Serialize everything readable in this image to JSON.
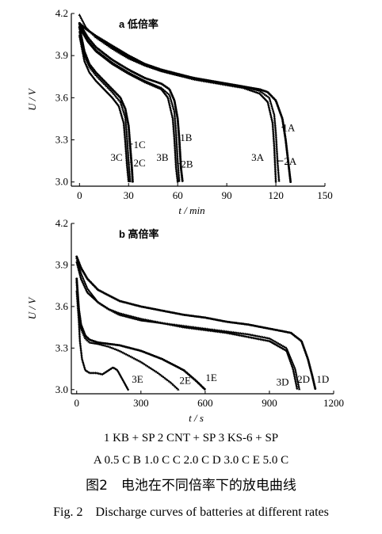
{
  "chart_data": [
    {
      "panel": "a",
      "title": "a 低倍率",
      "type": "line",
      "xlabel": "t / min",
      "ylabel": "U / V",
      "xlim": [
        -5,
        150
      ],
      "ylim": [
        2.97,
        4.2
      ],
      "xticks": [
        0,
        30,
        60,
        90,
        120,
        150
      ],
      "yticks": [
        3.0,
        3.3,
        3.6,
        3.9,
        4.2
      ],
      "series": [
        {
          "name": "1A",
          "points": [
            [
              0,
              4.13
            ],
            [
              5,
              4.08
            ],
            [
              10,
              4.04
            ],
            [
              20,
              3.97
            ],
            [
              30,
              3.9
            ],
            [
              40,
              3.84
            ],
            [
              50,
              3.8
            ],
            [
              60,
              3.77
            ],
            [
              70,
              3.74
            ],
            [
              80,
              3.72
            ],
            [
              90,
              3.7
            ],
            [
              100,
              3.68
            ],
            [
              110,
              3.66
            ],
            [
              115,
              3.64
            ],
            [
              120,
              3.58
            ],
            [
              124,
              3.45
            ],
            [
              126,
              3.3
            ],
            [
              128,
              3.1
            ],
            [
              129,
              3.0
            ]
          ]
        },
        {
          "name": "2A",
          "points": [
            [
              0,
              4.19
            ],
            [
              4,
              4.1
            ],
            [
              10,
              4.03
            ],
            [
              20,
              3.95
            ],
            [
              30,
              3.88
            ],
            [
              40,
              3.83
            ],
            [
              50,
              3.79
            ],
            [
              60,
              3.76
            ],
            [
              70,
              3.74
            ],
            [
              80,
              3.72
            ],
            [
              90,
              3.7
            ],
            [
              100,
              3.68
            ],
            [
              110,
              3.65
            ],
            [
              116,
              3.6
            ],
            [
              119,
              3.48
            ],
            [
              120,
              3.35
            ],
            [
              121,
              3.15
            ],
            [
              122,
              3.0
            ]
          ]
        },
        {
          "name": "3A",
          "points": [
            [
              0,
              4.12
            ],
            [
              4,
              4.09
            ],
            [
              10,
              4.04
            ],
            [
              20,
              3.96
            ],
            [
              30,
              3.89
            ],
            [
              40,
              3.83
            ],
            [
              50,
              3.79
            ],
            [
              60,
              3.76
            ],
            [
              70,
              3.73
            ],
            [
              80,
              3.71
            ],
            [
              90,
              3.69
            ],
            [
              100,
              3.67
            ],
            [
              110,
              3.63
            ],
            [
              115,
              3.57
            ],
            [
              118,
              3.42
            ],
            [
              119,
              3.25
            ],
            [
              120,
              3.0
            ]
          ]
        },
        {
          "name": "1B",
          "points": [
            [
              0,
              4.13
            ],
            [
              5,
              4.03
            ],
            [
              10,
              3.96
            ],
            [
              20,
              3.87
            ],
            [
              30,
              3.8
            ],
            [
              40,
              3.74
            ],
            [
              50,
              3.7
            ],
            [
              55,
              3.66
            ],
            [
              58,
              3.58
            ],
            [
              60,
              3.45
            ],
            [
              61,
              3.3
            ],
            [
              62,
              3.1
            ],
            [
              63,
              3.0
            ]
          ]
        },
        {
          "name": "2B",
          "points": [
            [
              0,
              4.11
            ],
            [
              5,
              4.01
            ],
            [
              10,
              3.94
            ],
            [
              20,
              3.85
            ],
            [
              30,
              3.78
            ],
            [
              40,
              3.72
            ],
            [
              50,
              3.67
            ],
            [
              55,
              3.62
            ],
            [
              58,
              3.5
            ],
            [
              59,
              3.35
            ],
            [
              60,
              3.15
            ],
            [
              61,
              3.0
            ]
          ]
        },
        {
          "name": "3B",
          "points": [
            [
              0,
              4.1
            ],
            [
              5,
              4.0
            ],
            [
              10,
              3.93
            ],
            [
              20,
              3.84
            ],
            [
              30,
              3.77
            ],
            [
              40,
              3.71
            ],
            [
              50,
              3.66
            ],
            [
              54,
              3.6
            ],
            [
              57,
              3.45
            ],
            [
              58,
              3.3
            ],
            [
              59,
              3.1
            ],
            [
              60,
              3.0
            ]
          ]
        },
        {
          "name": "1C",
          "points": [
            [
              0,
              4.1
            ],
            [
              3,
              3.93
            ],
            [
              6,
              3.84
            ],
            [
              10,
              3.78
            ],
            [
              15,
              3.72
            ],
            [
              20,
              3.66
            ],
            [
              25,
              3.6
            ],
            [
              28,
              3.52
            ],
            [
              30,
              3.4
            ],
            [
              31,
              3.25
            ],
            [
              32,
              3.1
            ],
            [
              32.5,
              3.0
            ]
          ]
        },
        {
          "name": "2C",
          "points": [
            [
              0,
              4.07
            ],
            [
              3,
              3.9
            ],
            [
              6,
              3.82
            ],
            [
              10,
              3.76
            ],
            [
              15,
              3.7
            ],
            [
              20,
              3.64
            ],
            [
              25,
              3.57
            ],
            [
              28,
              3.46
            ],
            [
              29,
              3.32
            ],
            [
              30,
              3.15
            ],
            [
              31,
              3.0
            ]
          ]
        },
        {
          "name": "3C",
          "points": [
            [
              0,
              4.04
            ],
            [
              3,
              3.86
            ],
            [
              6,
              3.78
            ],
            [
              10,
              3.72
            ],
            [
              15,
              3.66
            ],
            [
              20,
              3.6
            ],
            [
              24,
              3.54
            ],
            [
              27,
              3.42
            ],
            [
              28,
              3.28
            ],
            [
              29,
              3.12
            ],
            [
              30,
              3.0
            ]
          ]
        }
      ],
      "labels": [
        {
          "text": "1C",
          "x": 33,
          "y": 3.27,
          "point": [
            31.5,
            3.27
          ]
        },
        {
          "text": "3C",
          "x": 19,
          "y": 3.18
        },
        {
          "text": "2C",
          "x": 33,
          "y": 3.14,
          "point": [
            30.8,
            3.14
          ]
        },
        {
          "text": "1B",
          "x": 61.5,
          "y": 3.32,
          "point": [
            61,
            3.32
          ]
        },
        {
          "text": "3B",
          "x": 47,
          "y": 3.18
        },
        {
          "text": "2B",
          "x": 62,
          "y": 3.13,
          "point": [
            60.5,
            3.13
          ]
        },
        {
          "text": "1A",
          "x": 124,
          "y": 3.39,
          "point": [
            124.8,
            3.39
          ]
        },
        {
          "text": "3A",
          "x": 105,
          "y": 3.18
        },
        {
          "text": "2A",
          "x": 125,
          "y": 3.15,
          "point": [
            121,
            3.15
          ]
        }
      ]
    },
    {
      "panel": "b",
      "title": "b 高倍率",
      "type": "line",
      "xlabel": "t / s",
      "ylabel": "U / V",
      "xlim": [
        -25,
        1200
      ],
      "ylim": [
        2.97,
        4.2
      ],
      "xticks": [
        0,
        300,
        600,
        900,
        1200
      ],
      "yticks": [
        3.0,
        3.3,
        3.6,
        3.9,
        4.2
      ],
      "series": [
        {
          "name": "1D",
          "points": [
            [
              0,
              3.96
            ],
            [
              20,
              3.88
            ],
            [
              50,
              3.8
            ],
            [
              100,
              3.72
            ],
            [
              200,
              3.64
            ],
            [
              300,
              3.6
            ],
            [
              400,
              3.57
            ],
            [
              500,
              3.54
            ],
            [
              600,
              3.52
            ],
            [
              700,
              3.49
            ],
            [
              800,
              3.47
            ],
            [
              900,
              3.44
            ],
            [
              1000,
              3.41
            ],
            [
              1050,
              3.35
            ],
            [
              1080,
              3.22
            ],
            [
              1100,
              3.1
            ],
            [
              1115,
              3.0
            ]
          ]
        },
        {
          "name": "2D",
          "points": [
            [
              0,
              3.95
            ],
            [
              20,
              3.84
            ],
            [
              50,
              3.73
            ],
            [
              100,
              3.63
            ],
            [
              150,
              3.58
            ],
            [
              200,
              3.54
            ],
            [
              300,
              3.5
            ],
            [
              400,
              3.48
            ],
            [
              500,
              3.46
            ],
            [
              600,
              3.44
            ],
            [
              700,
              3.42
            ],
            [
              800,
              3.4
            ],
            [
              900,
              3.37
            ],
            [
              980,
              3.3
            ],
            [
              1020,
              3.15
            ],
            [
              1040,
              3.0
            ]
          ]
        },
        {
          "name": "3D",
          "points": [
            [
              0,
              3.92
            ],
            [
              20,
              3.8
            ],
            [
              50,
              3.7
            ],
            [
              100,
              3.63
            ],
            [
              150,
              3.58
            ],
            [
              200,
              3.55
            ],
            [
              300,
              3.51
            ],
            [
              400,
              3.48
            ],
            [
              500,
              3.45
            ],
            [
              600,
              3.43
            ],
            [
              700,
              3.41
            ],
            [
              800,
              3.38
            ],
            [
              900,
              3.35
            ],
            [
              980,
              3.28
            ],
            [
              1010,
              3.15
            ],
            [
              1030,
              3.0
            ]
          ]
        },
        {
          "name": "1E",
          "points": [
            [
              0,
              3.8
            ],
            [
              10,
              3.58
            ],
            [
              20,
              3.47
            ],
            [
              40,
              3.39
            ],
            [
              60,
              3.36
            ],
            [
              100,
              3.34
            ],
            [
              200,
              3.32
            ],
            [
              300,
              3.28
            ],
            [
              400,
              3.22
            ],
            [
              500,
              3.14
            ],
            [
              560,
              3.06
            ],
            [
              600,
              3.0
            ]
          ]
        },
        {
          "name": "2E",
          "points": [
            [
              0,
              3.78
            ],
            [
              10,
              3.55
            ],
            [
              20,
              3.44
            ],
            [
              40,
              3.37
            ],
            [
              60,
              3.34
            ],
            [
              100,
              3.33
            ],
            [
              150,
              3.31
            ],
            [
              200,
              3.28
            ],
            [
              300,
              3.2
            ],
            [
              380,
              3.12
            ],
            [
              440,
              3.05
            ],
            [
              475,
              3.0
            ]
          ]
        },
        {
          "name": "3E",
          "points": [
            [
              0,
              3.71
            ],
            [
              10,
              3.5
            ],
            [
              15,
              3.35
            ],
            [
              25,
              3.22
            ],
            [
              40,
              3.14
            ],
            [
              60,
              3.12
            ],
            [
              90,
              3.12
            ],
            [
              120,
              3.11
            ],
            [
              150,
              3.14
            ],
            [
              170,
              3.16
            ],
            [
              190,
              3.14
            ],
            [
              215,
              3.07
            ],
            [
              240,
              3.0
            ]
          ]
        }
      ],
      "labels": [
        {
          "text": "3E",
          "x": 257,
          "y": 3.08
        },
        {
          "text": "2E",
          "x": 480,
          "y": 3.07
        },
        {
          "text": "1E",
          "x": 602,
          "y": 3.09
        },
        {
          "text": "3D",
          "x": 932,
          "y": 3.06
        },
        {
          "text": "2D",
          "x": 1030,
          "y": 3.08
        },
        {
          "text": "1D",
          "x": 1120,
          "y": 3.08
        }
      ]
    }
  ],
  "legend": {
    "line1": "1 KB + SP   2 CNT + SP   3 KS-6 + SP",
    "line2": "A 0.5 C   B 1.0 C   C 2.0 C   D 3.0 C   E 5.0 C"
  },
  "caption": {
    "cn": "图2　电池在不同倍率下的放电曲线",
    "en": "Fig. 2　Discharge curves of batteries at different rates"
  }
}
